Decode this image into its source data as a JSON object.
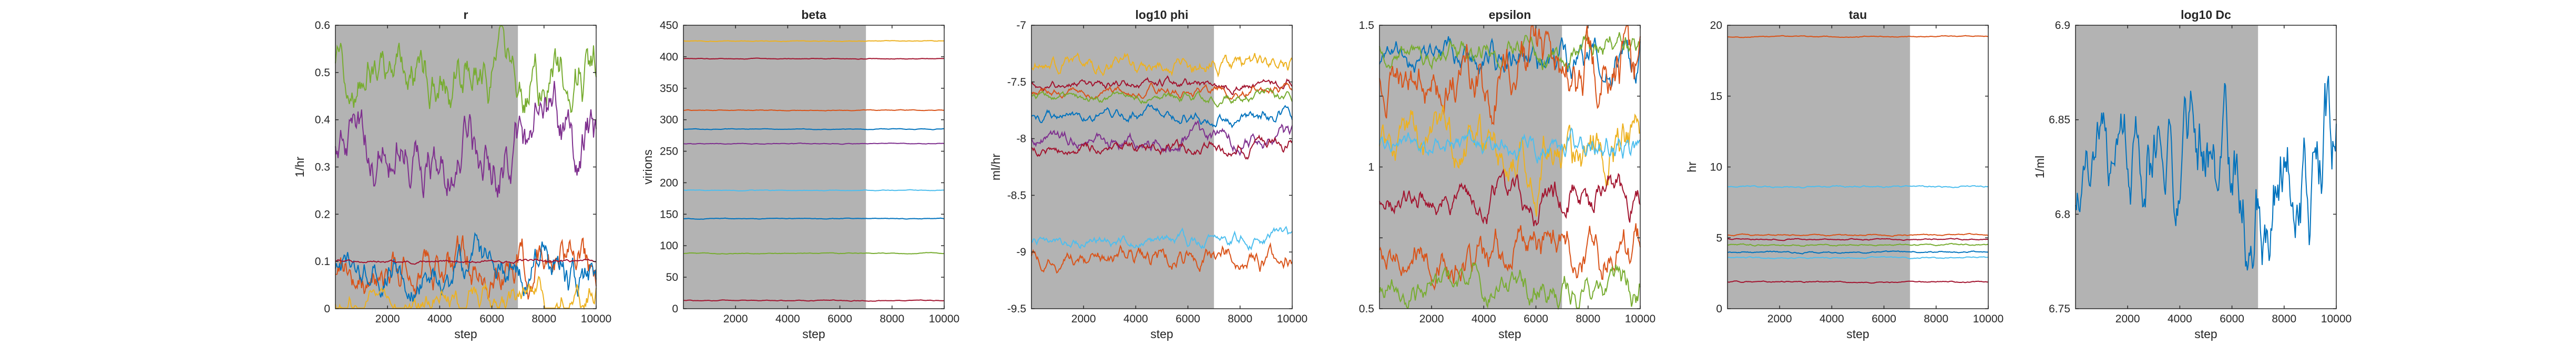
{
  "chart_data": [
    {
      "type": "line",
      "title": "r",
      "xlabel": "step",
      "ylabel": "1/hr",
      "xlim": [
        1,
        10000
      ],
      "ylim": [
        0,
        0.6
      ],
      "xticks": [
        "2000",
        "4000",
        "6000",
        "8000",
        "10000"
      ],
      "yticks": [
        "0",
        "0.1",
        "0.2",
        "0.3",
        "0.4",
        "0.5",
        "0.6"
      ],
      "shaded_until": 7000,
      "traces": [
        {
          "color": "#77ac30",
          "mean": 0.5,
          "amp": 0.045,
          "grow": 0.4
        },
        {
          "color": "#7e2f8e",
          "mean": 0.345,
          "amp": 0.05,
          "grow": 0.35
        },
        {
          "color": "#d95319",
          "mean": 0.09,
          "amp": 0.035,
          "grow": 0.4
        },
        {
          "color": "#0072bd",
          "mean": 0.08,
          "amp": 0.03,
          "grow": 0.4
        },
        {
          "color": "#edb120",
          "mean": 0.015,
          "amp": 0.02,
          "grow": 0.5
        },
        {
          "color": "#a2142f",
          "mean": 0.1,
          "amp": 0.003,
          "grow": 0.0
        }
      ]
    },
    {
      "type": "line",
      "title": "beta",
      "xlabel": "step",
      "ylabel": "virions",
      "xlim": [
        1,
        10000
      ],
      "ylim": [
        0,
        450
      ],
      "xticks": [
        "2000",
        "4000",
        "6000",
        "8000",
        "10000"
      ],
      "yticks": [
        "0",
        "50",
        "100",
        "150",
        "200",
        "250",
        "300",
        "350",
        "400",
        "450"
      ],
      "shaded_until": 7000,
      "traces": [
        {
          "color": "#edb120",
          "mean": 425,
          "amp": 0.5,
          "grow": 0
        },
        {
          "color": "#a2142f",
          "mean": 397,
          "amp": 0.5,
          "grow": 0
        },
        {
          "color": "#d95319",
          "mean": 315,
          "amp": 0.5,
          "grow": 0
        },
        {
          "color": "#0072bd",
          "mean": 285,
          "amp": 0.5,
          "grow": 0
        },
        {
          "color": "#7e2f8e",
          "mean": 262,
          "amp": 0.5,
          "grow": 0
        },
        {
          "color": "#4dbeee",
          "mean": 188,
          "amp": 0.5,
          "grow": 0
        },
        {
          "color": "#0072bd",
          "mean": 143,
          "amp": 0.5,
          "grow": 0
        },
        {
          "color": "#77ac30",
          "mean": 88,
          "amp": 0.5,
          "grow": 0
        },
        {
          "color": "#a2142f",
          "mean": 13,
          "amp": 0.5,
          "grow": 0
        }
      ]
    },
    {
      "type": "line",
      "title": "log10 phi",
      "xlabel": "step",
      "ylabel": "ml/hr",
      "xlim": [
        1,
        10000
      ],
      "ylim": [
        -9.5,
        -7
      ],
      "xticks": [
        "2000",
        "4000",
        "6000",
        "8000",
        "10000"
      ],
      "yticks": [
        "-9.5",
        "-9",
        "-8.5",
        "-8",
        "-7.5",
        "-7"
      ],
      "shaded_until": 7000,
      "traces": [
        {
          "color": "#edb120",
          "mean": -7.35,
          "amp": 0.05,
          "grow": 0.5
        },
        {
          "color": "#a2142f",
          "mean": -7.52,
          "amp": 0.03,
          "grow": 0.4
        },
        {
          "color": "#d95319",
          "mean": -7.58,
          "amp": 0.03,
          "grow": 0.4
        },
        {
          "color": "#77ac30",
          "mean": -7.63,
          "amp": 0.03,
          "grow": 0.4
        },
        {
          "color": "#0072bd",
          "mean": -7.8,
          "amp": 0.04,
          "grow": 0.4
        },
        {
          "color": "#7e2f8e",
          "mean": -8.02,
          "amp": 0.05,
          "grow": 0.4
        },
        {
          "color": "#a2142f",
          "mean": -8.08,
          "amp": 0.04,
          "grow": 0.4
        },
        {
          "color": "#4dbeee",
          "mean": -8.9,
          "amp": 0.04,
          "grow": 0.3
        },
        {
          "color": "#d95319",
          "mean": -9.05,
          "amp": 0.06,
          "grow": 0.4
        }
      ]
    },
    {
      "type": "line",
      "title": "epsilon",
      "xlabel": "step",
      "ylabel": "",
      "xlim": [
        1,
        10000
      ],
      "ylim": [
        0.5,
        1.5
      ],
      "xticks": [
        "2000",
        "4000",
        "6000",
        "8000",
        "10000"
      ],
      "yticks": [
        "0.5",
        "",
        "1",
        "",
        "1.5"
      ],
      "shaded_until": 7000,
      "traces": [
        {
          "color": "#0072bd",
          "mean": 1.38,
          "amp": 0.04,
          "grow": 0.6
        },
        {
          "color": "#77ac30",
          "mean": 1.42,
          "amp": 0.03,
          "grow": 0.6
        },
        {
          "color": "#d95319",
          "mean": 1.33,
          "amp": 0.07,
          "grow": 0.7
        },
        {
          "color": "#edb120",
          "mean": 1.05,
          "amp": 0.06,
          "grow": 0.7
        },
        {
          "color": "#4dbeee",
          "mean": 1.08,
          "amp": 0.03,
          "grow": 0.5
        },
        {
          "color": "#a2142f",
          "mean": 0.9,
          "amp": 0.04,
          "grow": 0.5
        },
        {
          "color": "#d95319",
          "mean": 0.7,
          "amp": 0.05,
          "grow": 0.6
        },
        {
          "color": "#77ac30",
          "mean": 0.57,
          "amp": 0.04,
          "grow": 0.4
        }
      ]
    },
    {
      "type": "line",
      "title": "tau",
      "xlabel": "step",
      "ylabel": "hr",
      "xlim": [
        1,
        10000
      ],
      "ylim": [
        0,
        20
      ],
      "xticks": [
        "2000",
        "4000",
        "6000",
        "8000",
        "10000"
      ],
      "yticks": [
        "0",
        "5",
        "10",
        "15",
        "20"
      ],
      "shaded_until": 7000,
      "traces": [
        {
          "color": "#d95319",
          "mean": 19.2,
          "amp": 0.03,
          "grow": 0
        },
        {
          "color": "#4dbeee",
          "mean": 8.6,
          "amp": 0.05,
          "grow": 0
        },
        {
          "color": "#d95319",
          "mean": 5.2,
          "amp": 0.04,
          "grow": 0
        },
        {
          "color": "#a2142f",
          "mean": 4.9,
          "amp": 0.04,
          "grow": 0
        },
        {
          "color": "#77ac30",
          "mean": 4.5,
          "amp": 0.05,
          "grow": 0
        },
        {
          "color": "#0072bd",
          "mean": 4.0,
          "amp": 0.05,
          "grow": 0
        },
        {
          "color": "#4dbeee",
          "mean": 3.6,
          "amp": 0.04,
          "grow": 0
        },
        {
          "color": "#a2142f",
          "mean": 1.9,
          "amp": 0.04,
          "grow": 0
        }
      ]
    },
    {
      "type": "line",
      "title": "log10 Dc",
      "xlabel": "step",
      "ylabel": "1/ml",
      "xlim": [
        1,
        10000
      ],
      "ylim": [
        6.75,
        6.9
      ],
      "xticks": [
        "2000",
        "4000",
        "6000",
        "8000",
        "10000"
      ],
      "yticks": [
        "6.75",
        "6.8",
        "6.85",
        "6.9"
      ],
      "shaded_until": 7000,
      "traces": [
        {
          "color": "#0072bd",
          "mean": 6.825,
          "amp": 0.018,
          "grow": 0.8,
          "start": 6.808
        }
      ]
    }
  ],
  "colors": {
    "shade": "#b3b3b3",
    "axis": "#262626"
  }
}
